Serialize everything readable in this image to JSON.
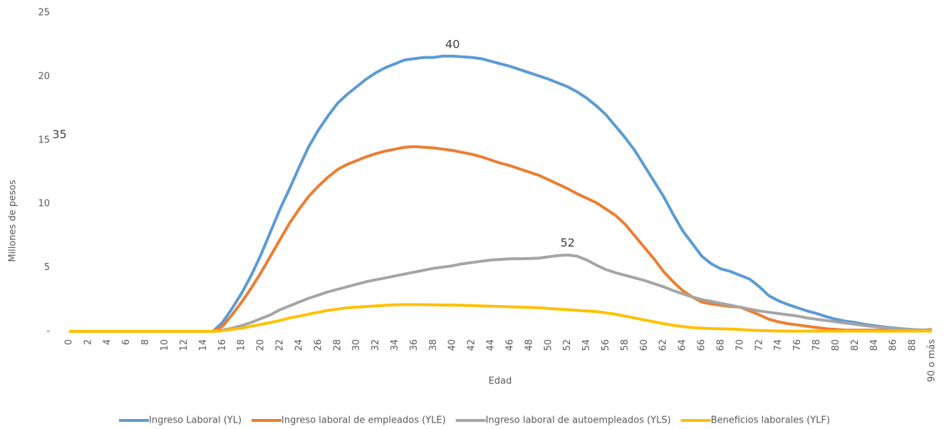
{
  "chart_data": {
    "type": "line",
    "x_label": "Edad",
    "y_label": "Millones de pesos",
    "categories": [
      0,
      null,
      2,
      null,
      4,
      null,
      6,
      null,
      8,
      null,
      10,
      null,
      12,
      null,
      14,
      null,
      16,
      null,
      18,
      null,
      20,
      null,
      22,
      null,
      24,
      null,
      26,
      null,
      28,
      null,
      30,
      null,
      32,
      null,
      34,
      null,
      36,
      null,
      38,
      null,
      40,
      null,
      42,
      null,
      44,
      null,
      46,
      null,
      48,
      null,
      50,
      null,
      52,
      null,
      54,
      null,
      56,
      null,
      58,
      null,
      60,
      null,
      62,
      null,
      64,
      null,
      66,
      null,
      68,
      null,
      70,
      null,
      72,
      null,
      74,
      null,
      76,
      null,
      78,
      null,
      80,
      null,
      82,
      null,
      84,
      null,
      86,
      null,
      88,
      null,
      "90 o más"
    ],
    "ylim": [
      0,
      25
    ],
    "yticks": [
      {
        "value": 0,
        "label": "-"
      },
      5,
      10,
      15,
      20,
      25
    ],
    "grid": false,
    "legend": "bottom",
    "series": [
      {
        "name": "Ingreso Laboral (YL)",
        "color": "#5b9bd5",
        "values": [
          0,
          0,
          0,
          0,
          0,
          0,
          0,
          0,
          0,
          0,
          0,
          0,
          0,
          0,
          0,
          0,
          0.7,
          1.8,
          3.0,
          4.4,
          6.0,
          7.8,
          9.6,
          11.2,
          12.9,
          14.5,
          15.8,
          16.9,
          17.9,
          18.6,
          19.2,
          19.8,
          20.3,
          20.7,
          21.0,
          21.3,
          21.4,
          21.5,
          21.5,
          21.6,
          21.6,
          21.55,
          21.5,
          21.4,
          21.2,
          21.0,
          20.8,
          20.55,
          20.3,
          20.05,
          19.8,
          19.5,
          19.2,
          18.8,
          18.3,
          17.7,
          17.0,
          16.1,
          15.2,
          14.2,
          13.0,
          11.8,
          10.6,
          9.2,
          7.9,
          6.9,
          5.9,
          5.3,
          4.9,
          4.7,
          4.4,
          4.1,
          3.5,
          2.8,
          2.4,
          2.1,
          1.85,
          1.6,
          1.4,
          1.15,
          0.95,
          0.8,
          0.7,
          0.55,
          0.45,
          0.35,
          0.28,
          0.2,
          0.15,
          0.1,
          0.05
        ]
      },
      {
        "name": "Ingreso laboral de empleados (YLE)",
        "color": "#ed7d31",
        "values": [
          0,
          0,
          0,
          0,
          0,
          0,
          0,
          0,
          0,
          0,
          0,
          0,
          0,
          0,
          0,
          0,
          0.4,
          1.3,
          2.3,
          3.4,
          4.6,
          5.9,
          7.2,
          8.5,
          9.6,
          10.6,
          11.4,
          12.1,
          12.7,
          13.1,
          13.4,
          13.7,
          13.95,
          14.15,
          14.3,
          14.45,
          14.5,
          14.45,
          14.4,
          14.3,
          14.2,
          14.05,
          13.9,
          13.7,
          13.45,
          13.2,
          13.0,
          12.75,
          12.5,
          12.25,
          11.9,
          11.55,
          11.2,
          10.8,
          10.45,
          10.1,
          9.6,
          9.1,
          8.4,
          7.5,
          6.6,
          5.7,
          4.7,
          3.9,
          3.2,
          2.7,
          2.3,
          2.15,
          2.05,
          1.95,
          1.9,
          1.6,
          1.3,
          0.95,
          0.75,
          0.6,
          0.5,
          0.4,
          0.3,
          0.2,
          0.15,
          0.1,
          0.1,
          0.1,
          0.1,
          0.1,
          0.1,
          0.1,
          0.1,
          0.1,
          0.15
        ]
      },
      {
        "name": "Ingreso laboral de autoempleados (YLS)",
        "color": "#a5a5a5",
        "values": [
          0,
          0,
          0,
          0,
          0,
          0,
          0,
          0,
          0,
          0,
          0,
          0,
          0,
          0,
          0,
          0,
          0.1,
          0.25,
          0.45,
          0.7,
          1.0,
          1.3,
          1.7,
          2.0,
          2.3,
          2.6,
          2.85,
          3.1,
          3.3,
          3.5,
          3.7,
          3.9,
          4.05,
          4.2,
          4.35,
          4.5,
          4.65,
          4.8,
          4.95,
          5.05,
          5.15,
          5.3,
          5.4,
          5.5,
          5.6,
          5.65,
          5.7,
          5.7,
          5.72,
          5.75,
          5.85,
          5.95,
          6.0,
          5.9,
          5.6,
          5.2,
          4.85,
          4.6,
          4.4,
          4.2,
          4.0,
          3.75,
          3.5,
          3.2,
          2.95,
          2.7,
          2.5,
          2.35,
          2.2,
          2.05,
          1.9,
          1.75,
          1.6,
          1.5,
          1.4,
          1.3,
          1.2,
          1.05,
          0.95,
          0.85,
          0.75,
          0.65,
          0.55,
          0.45,
          0.38,
          0.3,
          0.25,
          0.2,
          0.15,
          0.1,
          0.1
        ]
      },
      {
        "name": "Beneficios laborales (YLF)",
        "color": "#ffc000",
        "values": [
          0,
          0,
          0,
          0,
          0,
          0,
          0,
          0,
          0,
          0,
          0,
          0,
          0,
          0,
          0,
          0,
          0.05,
          0.15,
          0.25,
          0.4,
          0.55,
          0.7,
          0.85,
          1.05,
          1.2,
          1.35,
          1.5,
          1.65,
          1.75,
          1.85,
          1.9,
          1.95,
          2.0,
          2.05,
          2.08,
          2.1,
          2.1,
          2.1,
          2.08,
          2.07,
          2.06,
          2.05,
          2.03,
          2.0,
          1.98,
          1.95,
          1.93,
          1.9,
          1.88,
          1.85,
          1.8,
          1.75,
          1.7,
          1.65,
          1.6,
          1.55,
          1.45,
          1.35,
          1.2,
          1.05,
          0.9,
          0.75,
          0.6,
          0.48,
          0.38,
          0.3,
          0.25,
          0.22,
          0.2,
          0.18,
          0.15,
          0.1,
          0.07,
          0.05,
          0.03,
          0.02,
          0.02,
          0.02,
          0.02,
          0.02,
          0.02,
          0.02,
          0.02,
          0.02,
          0.02,
          0.02,
          0.02,
          0.02,
          0.02,
          0.02,
          0.02
        ]
      }
    ],
    "annotations": [
      {
        "text": "40",
        "x": 40,
        "y": 21.6
      },
      {
        "text": "35",
        "x": 35,
        "y": 14.5
      },
      {
        "text": "52",
        "x": 52,
        "y": 6.0
      }
    ]
  }
}
